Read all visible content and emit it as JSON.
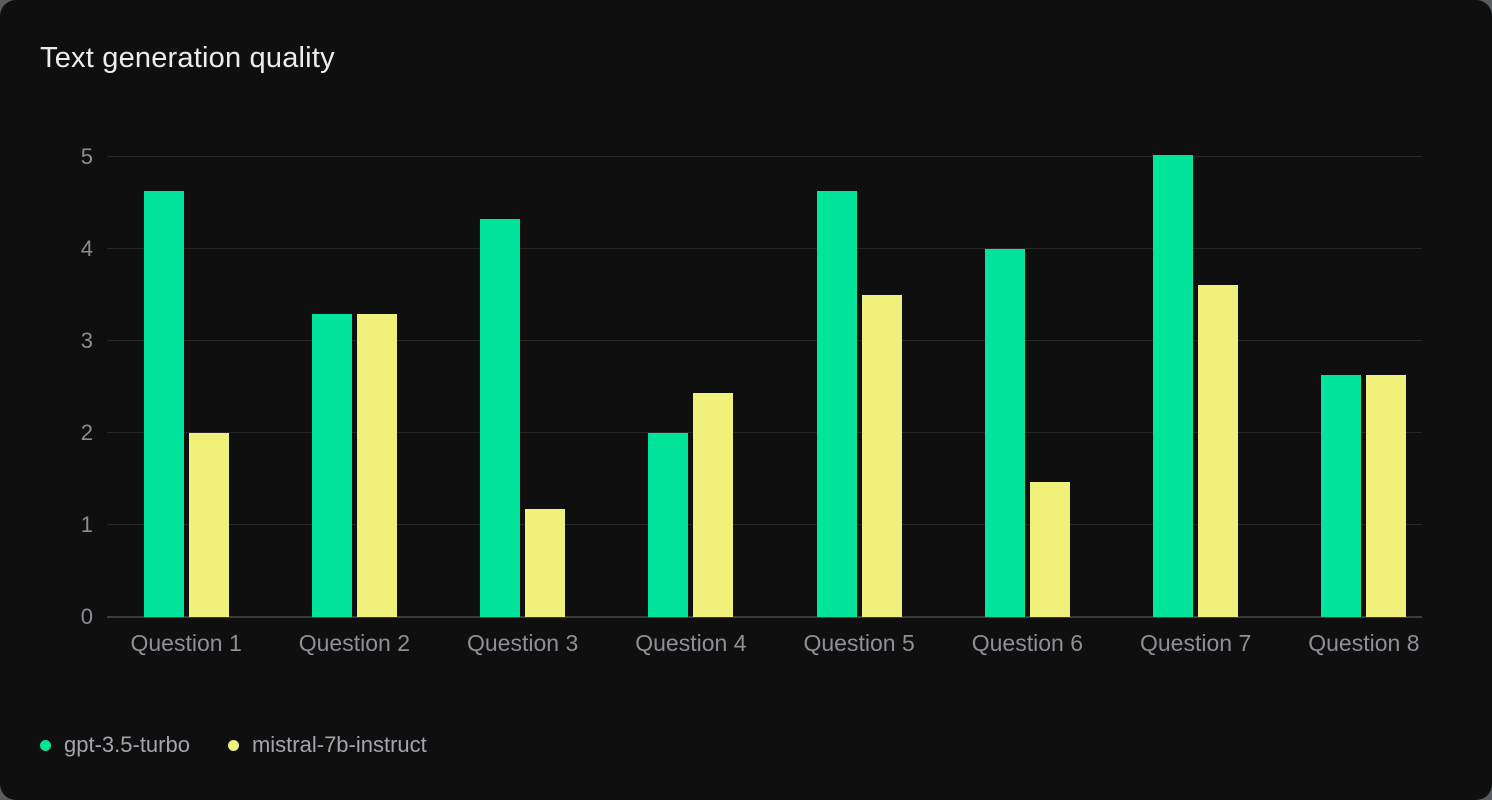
{
  "title": "Text generation quality",
  "chart_data": {
    "type": "bar",
    "title": "Text generation quality",
    "categories": [
      "Question 1",
      "Question 2",
      "Question 3",
      "Question 4",
      "Question 5",
      "Question 6",
      "Question 7",
      "Question 8"
    ],
    "series": [
      {
        "name": "gpt-3.5-turbo",
        "color": "#00e49b",
        "values": [
          4.63,
          3.29,
          4.33,
          2.0,
          4.63,
          4.0,
          5.02,
          2.63
        ]
      },
      {
        "name": "mistral-7b-instruct",
        "color": "#eff17b",
        "values": [
          2.0,
          3.29,
          1.17,
          2.43,
          3.5,
          1.47,
          3.61,
          2.63
        ]
      }
    ],
    "xlabel": "",
    "ylabel": "",
    "ylim": [
      0,
      5
    ],
    "yticks": [
      0,
      1,
      2,
      3,
      4,
      5
    ],
    "grid": true,
    "legend_position": "bottom-left",
    "colors": {
      "card_background": "#0e0f0e",
      "gridline": "#282828",
      "axis_line": "#3c3c3c",
      "tick_label": "#8c8c93",
      "category_label": "#8f8f96",
      "legend_text": "#a4a4ab",
      "title_text": "#ededed"
    }
  }
}
